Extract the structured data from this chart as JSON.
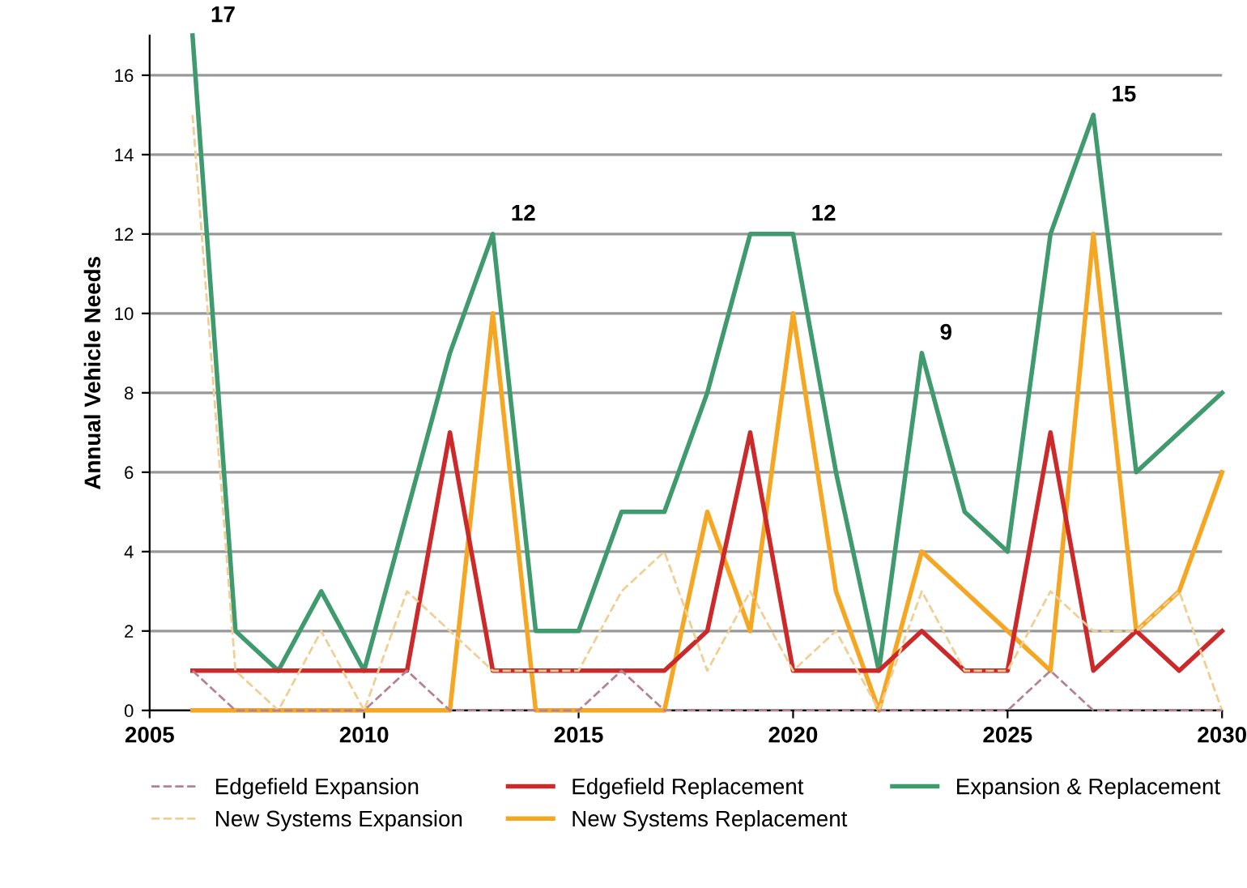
{
  "chart_data": {
    "type": "line",
    "ylabel": "Annual Vehicle Needs",
    "x": [
      2006,
      2007,
      2008,
      2009,
      2010,
      2011,
      2012,
      2013,
      2014,
      2015,
      2016,
      2017,
      2018,
      2019,
      2020,
      2021,
      2022,
      2023,
      2024,
      2025,
      2026,
      2027,
      2028,
      2029,
      2030
    ],
    "series": [
      {
        "name": "Edgefield Expansion",
        "color": "#b5838f",
        "line_style": "dashed",
        "values": [
          1,
          0,
          0,
          0,
          0,
          1,
          0,
          0,
          0,
          0,
          1,
          0,
          0,
          0,
          0,
          0,
          0,
          0,
          0,
          0,
          1,
          0,
          0,
          0,
          0
        ]
      },
      {
        "name": "New Systems Expansion",
        "color": "#f0cf95",
        "line_style": "dashed",
        "values": [
          15,
          1,
          0,
          2,
          0,
          3,
          2,
          1,
          1,
          1,
          3,
          4,
          1,
          3,
          1,
          2,
          0,
          3,
          1,
          1,
          3,
          2,
          2,
          3,
          0
        ]
      },
      {
        "name": "Edgefield Replacement",
        "color": "#cc2a2a",
        "line_style": "solid",
        "values": [
          1,
          1,
          1,
          1,
          1,
          1,
          7,
          1,
          1,
          1,
          1,
          1,
          2,
          7,
          1,
          1,
          1,
          2,
          1,
          1,
          7,
          1,
          2,
          1,
          2
        ]
      },
      {
        "name": "New Systems Replacement",
        "color": "#f5a623",
        "line_style": "solid",
        "values": [
          0,
          0,
          0,
          0,
          0,
          0,
          0,
          10,
          0,
          0,
          0,
          0,
          5,
          2,
          10,
          3,
          0,
          4,
          3,
          2,
          1,
          12,
          2,
          3,
          6
        ]
      },
      {
        "name": "Expansion & Replacement",
        "color": "#3f9a6e",
        "line_style": "solid",
        "values": [
          17,
          2,
          1,
          3,
          1,
          5,
          9,
          12,
          2,
          2,
          5,
          5,
          8,
          12,
          12,
          6,
          1,
          9,
          5,
          4,
          12,
          15,
          6,
          7,
          8
        ]
      }
    ],
    "annotations": [
      {
        "text": "17",
        "x": 2006,
        "y": 17
      },
      {
        "text": "12",
        "x": 2013,
        "y": 12
      },
      {
        "text": "12",
        "x": 2020,
        "y": 12
      },
      {
        "text": "9",
        "x": 2023,
        "y": 9
      },
      {
        "text": "15",
        "x": 2027,
        "y": 15
      }
    ],
    "xlim": [
      2005,
      2030
    ],
    "xticks": [
      2005,
      2010,
      2015,
      2020,
      2025,
      2030
    ],
    "ylim": [
      0,
      17
    ],
    "yticks": [
      0,
      2,
      4,
      6,
      8,
      10,
      12,
      14,
      16
    ],
    "grid": "y",
    "legend": "bottom",
    "marker": "none"
  }
}
